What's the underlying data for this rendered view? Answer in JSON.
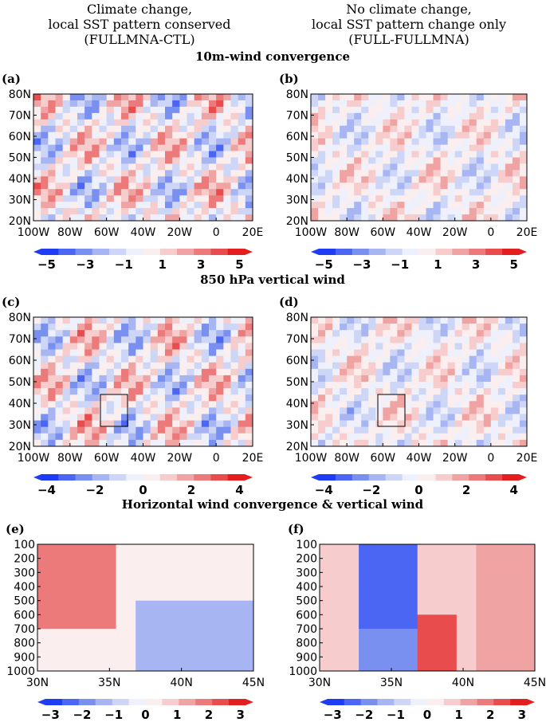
{
  "header": {
    "left": [
      "Climate change,",
      "local SST pattern conserved",
      "(FULLMNA-CTL)"
    ],
    "right": [
      "No climate change,",
      "local SST pattern change only",
      "(FULL-FULLMNA)"
    ]
  },
  "sections": [
    {
      "title": "10m-wind convergence",
      "panels": [
        {
          "label": "(a)",
          "yticks": [
            "80N",
            "70N",
            "60N",
            "50N",
            "40N",
            "30N",
            "20N"
          ],
          "xticks": [
            "100W",
            "80W",
            "60W",
            "40W",
            "20W",
            "0",
            "20E"
          ],
          "colorbar": [
            "−5",
            "−3",
            "−1",
            "1",
            "3",
            "5"
          ]
        },
        {
          "label": "(b)",
          "yticks": [
            "80N",
            "70N",
            "60N",
            "50N",
            "40N",
            "30N",
            "20N"
          ],
          "xticks": [
            "100W",
            "80W",
            "60W",
            "40W",
            "20W",
            "0",
            "20E"
          ],
          "colorbar": [
            "−5",
            "−3",
            "−1",
            "1",
            "3",
            "5"
          ]
        }
      ]
    },
    {
      "title": "850 hPa vertical wind",
      "panels": [
        {
          "label": "(c)",
          "yticks": [
            "80N",
            "70N",
            "60N",
            "50N",
            "40N",
            "30N",
            "20N"
          ],
          "xticks": [
            "100W",
            "80W",
            "60W",
            "40W",
            "20W",
            "0",
            "20E"
          ],
          "colorbar": [
            "−4",
            "−2",
            "0",
            "2",
            "4"
          ]
        },
        {
          "label": "(d)",
          "yticks": [
            "80N",
            "70N",
            "60N",
            "50N",
            "40N",
            "30N",
            "20N"
          ],
          "xticks": [
            "100W",
            "80W",
            "60W",
            "40W",
            "20W",
            "0",
            "20E"
          ],
          "colorbar": [
            "−4",
            "−2",
            "0",
            "2",
            "4"
          ]
        }
      ]
    },
    {
      "title": "Horizontal wind convergence & vertical wind",
      "panels": [
        {
          "label": "(e)",
          "yticks": [
            "100",
            "200",
            "300",
            "400",
            "500",
            "600",
            "700",
            "800",
            "900",
            "1000"
          ],
          "xticks": [
            "30N",
            "35N",
            "40N",
            "45N"
          ],
          "colorbar": [
            "−3",
            "−2",
            "−1",
            "0",
            "1",
            "2",
            "3"
          ]
        },
        {
          "label": "(f)",
          "yticks": [
            "100",
            "200",
            "300",
            "400",
            "500",
            "600",
            "700",
            "800",
            "900",
            "1000"
          ],
          "xticks": [
            "30N",
            "35N",
            "40N",
            "45N"
          ],
          "colorbar": [
            "−3",
            "−2",
            "−1",
            "0",
            "1",
            "2",
            "3"
          ]
        }
      ]
    }
  ]
}
